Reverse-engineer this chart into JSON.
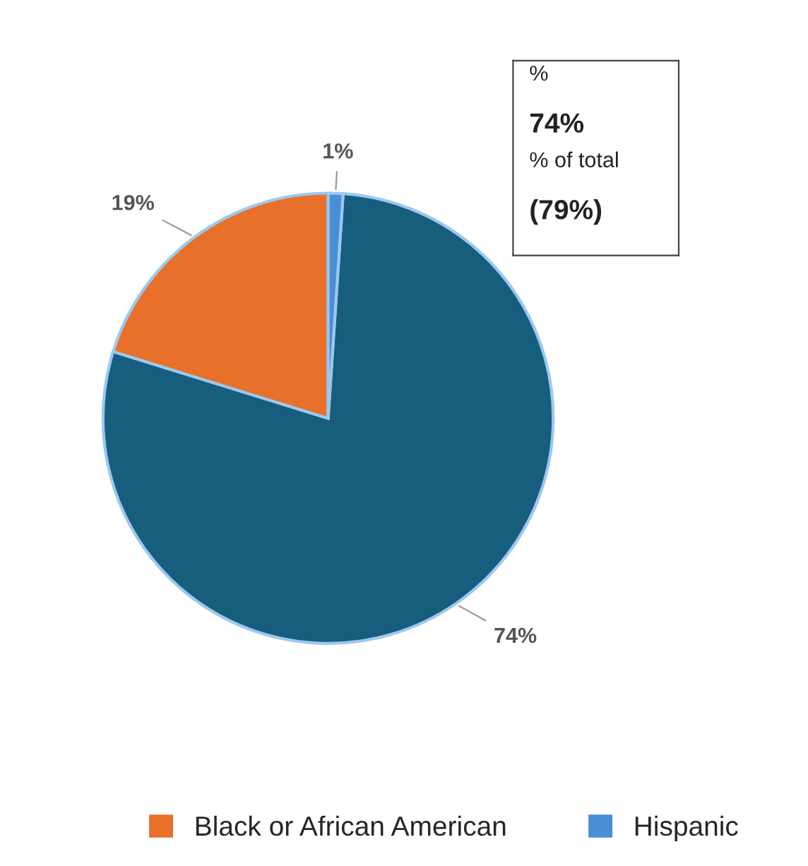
{
  "chart_data": {
    "type": "pie",
    "categories": [
      null,
      "Black or African American",
      "Hispanic"
    ],
    "values": [
      74,
      19,
      1
    ],
    "colors": [
      "#175e7e",
      "#e8702a",
      "#4a8fd6"
    ],
    "value_labels": [
      "74%",
      "19%",
      "1%"
    ],
    "annotations": [
      "%",
      "74%",
      "% of total",
      "(79%)"
    ],
    "legend": "bottom"
  }
}
